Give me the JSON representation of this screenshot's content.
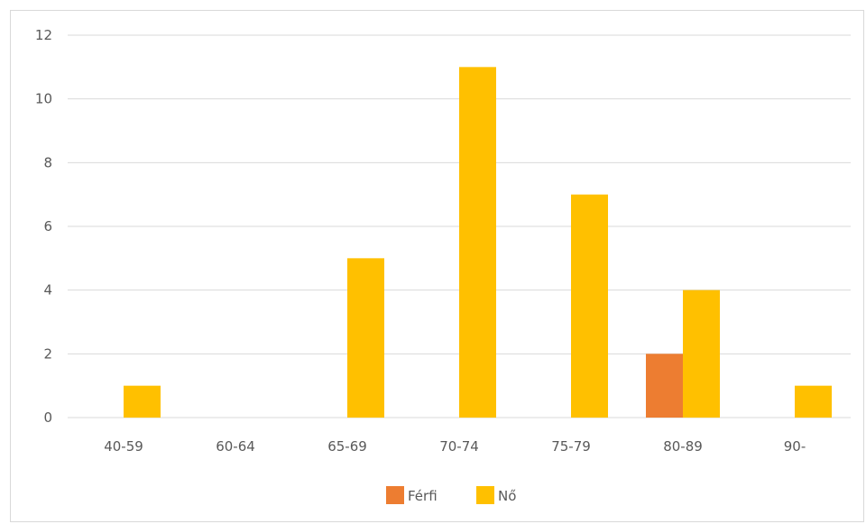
{
  "chart_data": {
    "type": "bar",
    "categories": [
      "40-59",
      "60-64",
      "65-69",
      "70-74",
      "75-79",
      "80-89",
      "90-"
    ],
    "series": [
      {
        "name": "Férfi",
        "color": "#ED7D31",
        "values": [
          0,
          0,
          0,
          0,
          0,
          2,
          0
        ]
      },
      {
        "name": "Nő",
        "color": "#FFC000",
        "values": [
          1,
          0,
          5,
          11,
          7,
          4,
          1
        ]
      }
    ],
    "yticks": [
      "0",
      "2",
      "4",
      "6",
      "8",
      "10",
      "12"
    ],
    "ylim": [
      0,
      12
    ],
    "grid": true,
    "legend_position": "bottom",
    "title": "",
    "xlabel": "",
    "ylabel": ""
  }
}
